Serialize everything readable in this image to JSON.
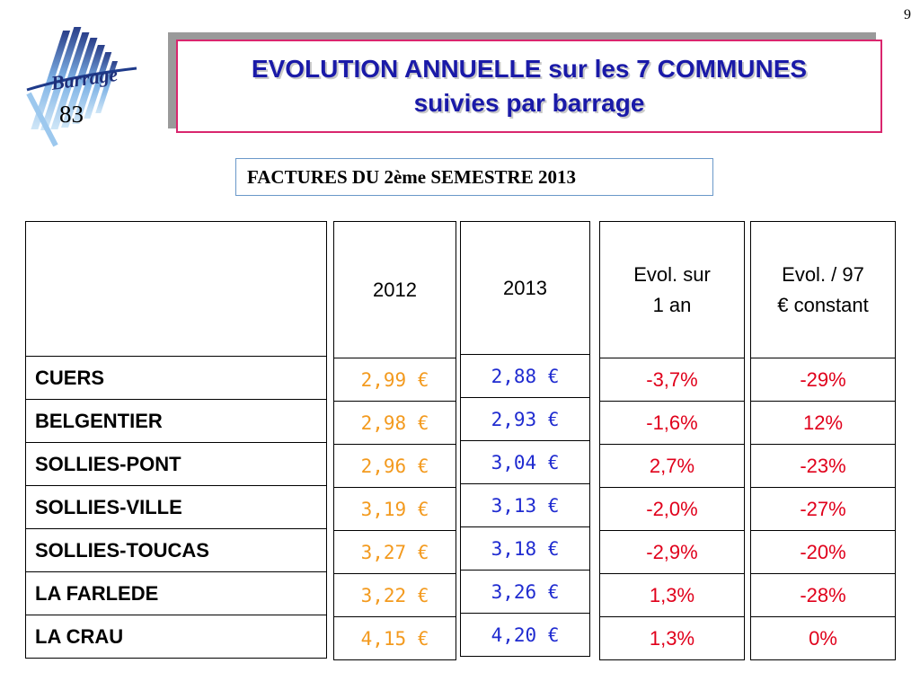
{
  "page_number": "9",
  "logo": {
    "text": "Barrage",
    "number": "83"
  },
  "title": {
    "line1": "EVOLUTION ANNUELLE sur les 7 COMMUNES",
    "line2": "suivies par barrage"
  },
  "subtitle": "FACTURES DU 2ème SEMESTRE 2013",
  "headers": {
    "communes": "",
    "y2012": "2012",
    "y2013": "2013",
    "evol1_line1": "Evol. sur",
    "evol1_line2": "1 an",
    "evol97_line1": "Evol. / 97",
    "evol97_line2": "€ constant"
  },
  "communes": [
    "CUERS",
    "BELGENTIER",
    "SOLLIES-PONT",
    "SOLLIES-VILLE",
    "SOLLIES-TOUCAS",
    "LA FARLEDE",
    "LA CRAU"
  ],
  "prices_2012": [
    "2,99 €",
    "2,98 €",
    "2,96 €",
    "3,19 €",
    "3,27 €",
    "3,22 €",
    "4,15 €"
  ],
  "prices_2013": [
    "2,88 €",
    "2,93 €",
    "3,04 €",
    "3,13 €",
    "3,18 €",
    "3,26 €",
    "4,20 €"
  ],
  "evol_1an": [
    "-3,7%",
    "-1,6%",
    "2,7%",
    "-2,0%",
    "-2,9%",
    "1,3%",
    "1,3%"
  ],
  "evol_97": [
    "-29%",
    "12%",
    "-23%",
    "-27%",
    "-20%",
    "-28%",
    "0%"
  ],
  "colors": {
    "price_2012": "#f39a1e",
    "price_2013": "#1f2bd0",
    "percent": "#e0001b",
    "title": "#1a1aa8",
    "title_border": "#d9266e"
  }
}
